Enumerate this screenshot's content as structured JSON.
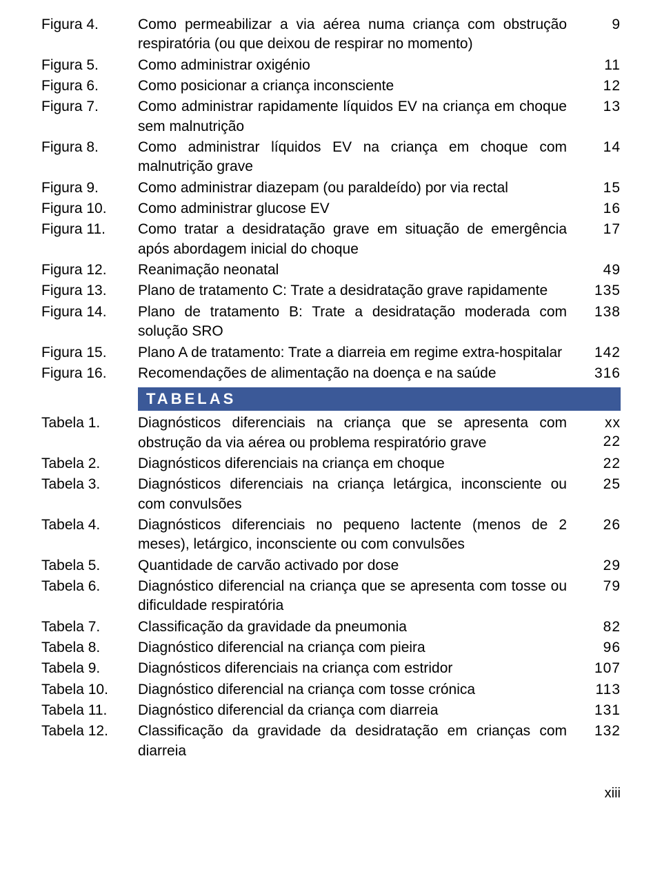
{
  "figuras": [
    {
      "label": "Figura 4.",
      "desc": "Como permeabilizar a via aérea numa criança com obstrução respiratória (ou que deixou de respirar no momento)",
      "page": "9"
    },
    {
      "label": "Figura 5.",
      "desc": "Como administrar oxigénio",
      "page": "11"
    },
    {
      "label": "Figura 6.",
      "desc": "Como posicionar a criança inconsciente",
      "page": "12"
    },
    {
      "label": "Figura 7.",
      "desc": "Como administrar rapidamente líquidos EV na criança em choque sem malnutrição",
      "page": "13"
    },
    {
      "label": "Figura 8.",
      "desc": "Como administrar líquidos EV na criança em choque com malnutrição grave",
      "page": "14"
    },
    {
      "label": "Figura 9.",
      "desc": "Como administrar diazepam (ou paraldeído) por via rectal",
      "page": "15"
    },
    {
      "label": "Figura 10.",
      "desc": "Como administrar glucose EV",
      "page": "16"
    },
    {
      "label": "Figura 11.",
      "desc": "Como tratar a desidratação grave em situação de emergência após abordagem inicial do choque",
      "page": "17"
    },
    {
      "label": "Figura 12.",
      "desc": "Reanimação neonatal",
      "page": "49"
    },
    {
      "label": "Figura 13.",
      "desc": "Plano de tratamento C: Trate a desidratação grave rapidamente",
      "page": "135"
    },
    {
      "label": "Figura 14.",
      "desc": "Plano de tratamento B: Trate a desidratação moderada com solução SRO",
      "page": "138"
    },
    {
      "label": "Figura 15.",
      "desc": "Plano A de tratamento: Trate a diarreia em regime extra-hospitalar",
      "page": "142"
    },
    {
      "label": "Figura 16.",
      "desc": "Recomendações de alimentação na doença e na saúde",
      "page": "316"
    }
  ],
  "tabelas_header": "TABELAS",
  "tabelas": [
    {
      "label": "Tabela 1.",
      "desc": "Diagnósticos diferenciais na criança que se apresenta com obstrução da via aérea ou problema respiratório grave",
      "page": [
        "xx",
        "22"
      ]
    },
    {
      "label": "Tabela 2.",
      "desc": "Diagnósticos diferenciais na criança em choque",
      "page": "22"
    },
    {
      "label": "Tabela 3.",
      "desc": "Diagnósticos diferenciais na criança letárgica, inconsciente ou com convulsões",
      "page": "25"
    },
    {
      "label": "Tabela 4.",
      "desc": "Diagnósticos diferenciais no pequeno lactente (menos de 2 meses), letárgico, inconsciente ou com convulsões",
      "page": "26"
    },
    {
      "label": "Tabela 5.",
      "desc": "Quantidade de carvão activado por dose",
      "page": "29"
    },
    {
      "label": "Tabela 6.",
      "desc": "Diagnóstico diferencial na criança que se apresenta com tosse ou dificuldade respiratória",
      "page": "79"
    },
    {
      "label": "Tabela 7.",
      "desc": "Classificação da gravidade da pneumonia",
      "page": "82"
    },
    {
      "label": "Tabela 8.",
      "desc": "Diagnóstico diferencial na criança com pieira",
      "page": "96"
    },
    {
      "label": "Tabela 9.",
      "desc": "Diagnósticos diferenciais na criança com estridor",
      "page": "107"
    },
    {
      "label": "Tabela 10.",
      "desc": "Diagnóstico diferencial na criança com tosse crónica",
      "page": "113"
    },
    {
      "label": "Tabela 11.",
      "desc": "Diagnóstico diferencial da criança com diarreia",
      "page": "131"
    },
    {
      "label": "Tabela 12.",
      "desc": "Classificação da gravidade da desidratação em crianças com diarreia",
      "page": "132"
    }
  ],
  "footer": "xiii",
  "colors": {
    "header_bg": "#3b5998",
    "header_text": "#ffffff",
    "text": "#000000",
    "background": "#ffffff"
  }
}
